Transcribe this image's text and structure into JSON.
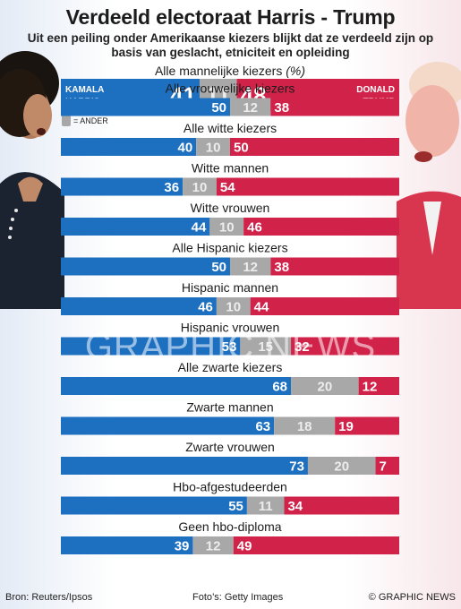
{
  "title": "Verdeeld electoraat Harris - Trump",
  "subtitle": "Uit een peiling onder Amerikaanse kiezers blijkt dat ze verdeeld zijn op basis van geslacht, etniciteit en opleiding",
  "legend": {
    "other_label": "= ANDER",
    "harris_label_line1": "KAMALA",
    "harris_label_line2": "HARRIS",
    "trump_label_line1": "DONALD",
    "trump_label_line2": "TRUMP"
  },
  "colors": {
    "harris": "#1d6fc0",
    "other": "#a8a8a8",
    "trump": "#d1234a"
  },
  "chart_data": {
    "type": "bar",
    "orientation": "horizontal-stacked",
    "unit": "%",
    "categories": [
      "Alle mannelijke kiezers",
      "Alle vrouwelijke kiezers",
      "Alle witte kiezers",
      "Witte mannen",
      "Witte vrouwen",
      "Alle Hispanic kiezers",
      "Hispanic mannen",
      "Hispanic vrouwen",
      "Alle zwarte kiezers",
      "Zwarte mannen",
      "Zwarte vrouwen",
      "Hbo-afgestudeerden",
      "Geen hbo-diploma"
    ],
    "series": [
      {
        "name": "KAMALA HARRIS",
        "values": [
          41,
          50,
          40,
          36,
          44,
          50,
          46,
          53,
          68,
          63,
          73,
          55,
          39
        ]
      },
      {
        "name": "ANDER",
        "values": [
          11,
          12,
          10,
          10,
          10,
          12,
          10,
          15,
          20,
          18,
          20,
          11,
          12
        ]
      },
      {
        "name": "DONALD TRUMP",
        "values": [
          48,
          38,
          50,
          54,
          46,
          38,
          44,
          32,
          12,
          19,
          7,
          34,
          49
        ]
      }
    ]
  },
  "first_label_suffix": "(%)",
  "watermark": "GRAPHIC NEWS",
  "footer": {
    "source": "Bron: Reuters/Ipsos",
    "credit": "Foto’s: Getty Images",
    "copyright": "© GRAPHIC NEWS"
  }
}
